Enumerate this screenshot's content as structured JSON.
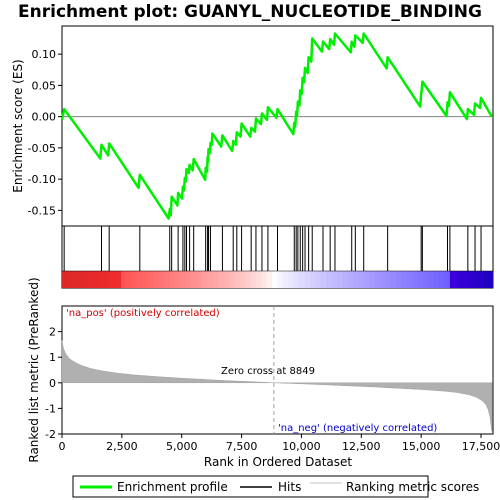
{
  "chart_data": {
    "type": "line",
    "title": "Enrichment plot: GUANYL_NUCLEOTIDE_BINDING",
    "xlabel": "Rank in Ordered Dataset",
    "ylabel_top": "Enrichment score (ES)",
    "ylabel_bottom": "Ranked list metric (PreRanked)",
    "xlim": [
      0,
      18000
    ],
    "x_ticks": [
      0,
      2500,
      5000,
      7500,
      10000,
      12500,
      15000,
      17500
    ],
    "x_tick_labels": [
      "0",
      "2,500",
      "5,000",
      "7,500",
      "10,000",
      "12,500",
      "15,000",
      "17,500"
    ],
    "es_ylim": [
      -0.175,
      0.145
    ],
    "es_ticks": [
      -0.15,
      -0.1,
      -0.05,
      0.0,
      0.05,
      0.1
    ],
    "es_tick_labels": [
      "-0.15",
      "-0.10",
      "-0.05",
      "0.00",
      "0.05",
      "0.10"
    ],
    "metric_ylim": [
      -2,
      3
    ],
    "metric_ticks": [
      -2,
      -1,
      0,
      1,
      2
    ],
    "metric_tick_labels": [
      "-2",
      "-1",
      "0",
      "1",
      "2"
    ],
    "zero_cross": 8849,
    "zero_cross_label": "Zero cross at 8849",
    "pos_label": "'na_pos' (positively correlated)",
    "neg_label": "'na_neg' (negatively correlated)",
    "hits": [
      90,
      1650,
      1970,
      3250,
      4500,
      4580,
      4850,
      5050,
      5130,
      5200,
      5330,
      5500,
      6000,
      6080,
      6120,
      6200,
      6700,
      7150,
      7300,
      7500,
      7900,
      8100,
      8350,
      8600,
      9000,
      9700,
      9780,
      9850,
      9950,
      10050,
      10150,
      10300,
      10450,
      10900,
      11200,
      11400,
      12100,
      12250,
      12600,
      13600,
      15000,
      15050,
      16100,
      16200,
      16950,
      17250,
      17500
    ],
    "es_points": [
      [
        0,
        -0.005
      ],
      [
        90,
        0.012
      ],
      [
        1600,
        -0.067
      ],
      [
        1650,
        -0.045
      ],
      [
        1930,
        -0.062
      ],
      [
        1970,
        -0.043
      ],
      [
        3200,
        -0.114
      ],
      [
        3250,
        -0.093
      ],
      [
        4450,
        -0.163
      ],
      [
        4500,
        -0.148
      ],
      [
        4540,
        -0.158
      ],
      [
        4580,
        -0.128
      ],
      [
        4820,
        -0.142
      ],
      [
        4850,
        -0.122
      ],
      [
        5010,
        -0.131
      ],
      [
        5050,
        -0.112
      ],
      [
        5100,
        -0.118
      ],
      [
        5130,
        -0.098
      ],
      [
        5170,
        -0.104
      ],
      [
        5200,
        -0.084
      ],
      [
        5300,
        -0.09
      ],
      [
        5330,
        -0.077
      ],
      [
        5460,
        -0.086
      ],
      [
        5500,
        -0.068
      ],
      [
        5980,
        -0.101
      ],
      [
        6000,
        -0.082
      ],
      [
        6060,
        -0.088
      ],
      [
        6080,
        -0.065
      ],
      [
        6100,
        -0.072
      ],
      [
        6120,
        -0.052
      ],
      [
        6180,
        -0.058
      ],
      [
        6200,
        -0.042
      ],
      [
        6250,
        -0.045
      ],
      [
        6280,
        -0.027
      ],
      [
        6650,
        -0.048
      ],
      [
        6700,
        -0.03
      ],
      [
        7110,
        -0.055
      ],
      [
        7150,
        -0.039
      ],
      [
        7260,
        -0.045
      ],
      [
        7300,
        -0.025
      ],
      [
        7460,
        -0.032
      ],
      [
        7500,
        -0.011
      ],
      [
        7860,
        -0.032
      ],
      [
        7900,
        -0.018
      ],
      [
        8060,
        -0.024
      ],
      [
        8100,
        -0.003
      ],
      [
        8310,
        -0.012
      ],
      [
        8350,
        0.005
      ],
      [
        8560,
        -0.005
      ],
      [
        8600,
        0.015
      ],
      [
        8960,
        -0.002
      ],
      [
        9000,
        0.012
      ],
      [
        9660,
        -0.028
      ],
      [
        9700,
        -0.01
      ],
      [
        9740,
        -0.016
      ],
      [
        9780,
        0.008
      ],
      [
        9820,
        0.002
      ],
      [
        9850,
        0.024
      ],
      [
        9920,
        0.018
      ],
      [
        9950,
        0.042
      ],
      [
        10010,
        0.036
      ],
      [
        10050,
        0.062
      ],
      [
        10110,
        0.055
      ],
      [
        10150,
        0.078
      ],
      [
        10260,
        0.07
      ],
      [
        10300,
        0.095
      ],
      [
        10410,
        0.088
      ],
      [
        10450,
        0.125
      ],
      [
        10860,
        0.104
      ],
      [
        10900,
        0.12
      ],
      [
        11160,
        0.108
      ],
      [
        11200,
        0.124
      ],
      [
        11360,
        0.115
      ],
      [
        11400,
        0.133
      ],
      [
        12060,
        0.103
      ],
      [
        12100,
        0.12
      ],
      [
        12210,
        0.112
      ],
      [
        12250,
        0.13
      ],
      [
        12560,
        0.118
      ],
      [
        12600,
        0.133
      ],
      [
        13560,
        0.077
      ],
      [
        13600,
        0.095
      ],
      [
        14960,
        0.016
      ],
      [
        15000,
        0.038
      ],
      [
        15010,
        0.037
      ],
      [
        15050,
        0.056
      ],
      [
        16060,
        0.001
      ],
      [
        16100,
        0.023
      ],
      [
        16160,
        0.017
      ],
      [
        16200,
        0.039
      ],
      [
        16910,
        -0.004
      ],
      [
        16950,
        0.012
      ],
      [
        17210,
        0.003
      ],
      [
        17250,
        0.021
      ],
      [
        17460,
        0.014
      ],
      [
        17500,
        0.03
      ],
      [
        17950,
        0.0
      ]
    ],
    "metric_points": [
      [
        0,
        1.65
      ],
      [
        60,
        1.35
      ],
      [
        150,
        1.15
      ],
      [
        300,
        0.95
      ],
      [
        500,
        0.82
      ],
      [
        800,
        0.68
      ],
      [
        1200,
        0.56
      ],
      [
        1700,
        0.46
      ],
      [
        2300,
        0.38
      ],
      [
        3000,
        0.31
      ],
      [
        4000,
        0.24
      ],
      [
        5000,
        0.18
      ],
      [
        6000,
        0.13
      ],
      [
        7000,
        0.08
      ],
      [
        8000,
        0.04
      ],
      [
        8849,
        0.0
      ],
      [
        10000,
        -0.04
      ],
      [
        11000,
        -0.08
      ],
      [
        12000,
        -0.12
      ],
      [
        13000,
        -0.16
      ],
      [
        14000,
        -0.21
      ],
      [
        15000,
        -0.26
      ],
      [
        16000,
        -0.33
      ],
      [
        16500,
        -0.38
      ],
      [
        17000,
        -0.47
      ],
      [
        17300,
        -0.56
      ],
      [
        17550,
        -0.7
      ],
      [
        17700,
        -0.85
      ],
      [
        17800,
        -1.05
      ],
      [
        17880,
        -1.35
      ],
      [
        17940,
        -1.85
      ],
      [
        17960,
        -1.9
      ]
    ],
    "colors": {
      "es_line": "#00ee00",
      "hit_line": "#000000",
      "metric_fill": "#b0b0b0",
      "zero_line": "#c0c0c0",
      "pos_text": "#d00000",
      "neg_text": "#0000cc",
      "zero_cross_line": "#a0a0a0"
    },
    "legend": [
      {
        "label": "Enrichment profile",
        "color": "#00ee00",
        "kind": "line-thick"
      },
      {
        "label": "Hits",
        "color": "#000000",
        "kind": "line"
      },
      {
        "label": "Ranking metric scores",
        "color": "#c0c0c0",
        "kind": "line-thin"
      }
    ]
  }
}
